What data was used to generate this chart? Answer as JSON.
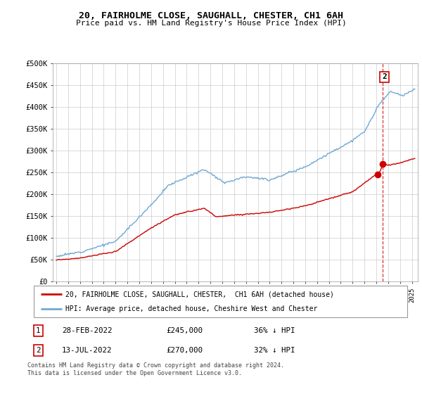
{
  "title": "20, FAIRHOLME CLOSE, SAUGHALL, CHESTER, CH1 6AH",
  "subtitle": "Price paid vs. HM Land Registry's House Price Index (HPI)",
  "ylabel_ticks": [
    "£0",
    "£50K",
    "£100K",
    "£150K",
    "£200K",
    "£250K",
    "£300K",
    "£350K",
    "£400K",
    "£450K",
    "£500K"
  ],
  "ytick_vals": [
    0,
    50000,
    100000,
    150000,
    200000,
    250000,
    300000,
    350000,
    400000,
    450000,
    500000
  ],
  "xlim_start": 1994.7,
  "xlim_end": 2025.5,
  "ylim": [
    0,
    500000
  ],
  "legend_entry1": "20, FAIRHOLME CLOSE, SAUGHALL, CHESTER,  CH1 6AH (detached house)",
  "legend_entry2": "HPI: Average price, detached house, Cheshire West and Chester",
  "note1_num": "1",
  "note1_date": "28-FEB-2022",
  "note1_price": "£245,000",
  "note1_pct": "36% ↓ HPI",
  "note2_num": "2",
  "note2_date": "13-JUL-2022",
  "note2_price": "£270,000",
  "note2_pct": "32% ↓ HPI",
  "footer": "Contains HM Land Registry data © Crown copyright and database right 2024.\nThis data is licensed under the Open Government Licence v3.0.",
  "red_color": "#cc0000",
  "blue_color": "#6fa8d4",
  "marker1_x": 2022.12,
  "marker1_y": 245000,
  "marker2_x": 2022.54,
  "marker2_y": 270000,
  "dashed_x": 2022.54
}
